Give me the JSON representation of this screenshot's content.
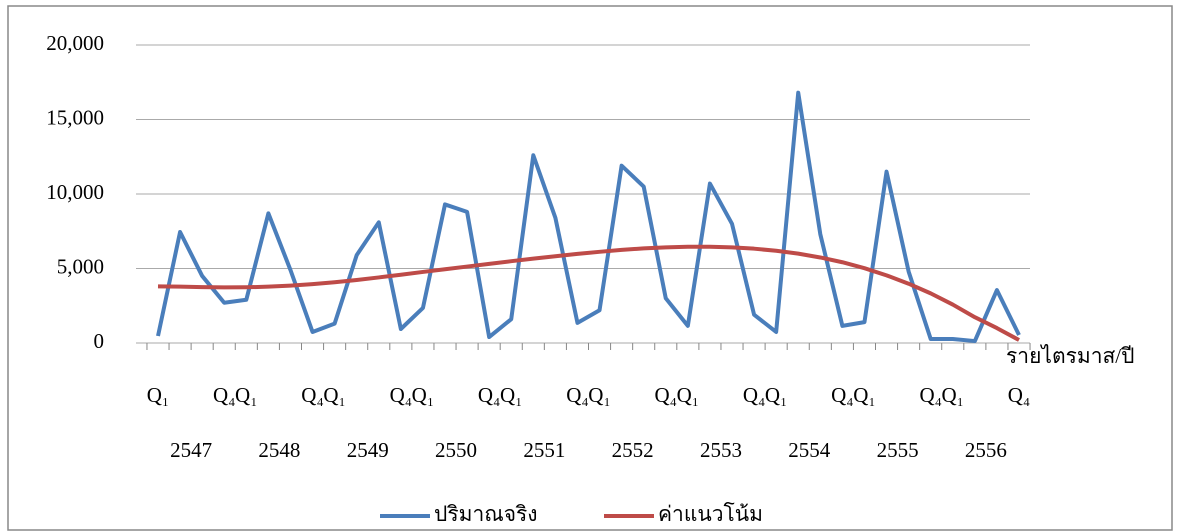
{
  "chart_data": {
    "type": "line",
    "x_label": "รายไตรมาส/ปี",
    "categories": [
      "Q₁",
      null,
      null,
      "Q₄",
      "Q₁",
      null,
      null,
      "Q₄",
      "Q₁",
      null,
      null,
      "Q₄",
      "Q₁",
      null,
      null,
      "Q₄",
      "Q₁",
      null,
      null,
      "Q₄",
      "Q₁",
      null,
      null,
      "Q₄",
      "Q₁",
      null,
      null,
      "Q₄",
      "Q₁",
      null,
      null,
      "Q₄",
      "Q₁",
      null,
      null,
      "Q₄",
      "Q₁",
      null,
      null,
      "Q₄"
    ],
    "category_groups": [
      "2547",
      "2548",
      "2549",
      "2550",
      "2551",
      "2552",
      "2553",
      "2554",
      "2555",
      "2556"
    ],
    "series": [
      {
        "name": "ปริมาณจริง",
        "color": "#4a7ebb",
        "values": [
          470,
          7450,
          4500,
          2700,
          2900,
          8700,
          4900,
          740,
          1300,
          5900,
          8100,
          940,
          2350,
          9300,
          8800,
          400,
          1600,
          12600,
          8400,
          1350,
          2200,
          11900,
          10500,
          3000,
          1150,
          10700,
          8000,
          1900,
          740,
          16800,
          7300,
          1150,
          1400,
          11500,
          4800,
          270,
          270,
          130,
          3550,
          540
        ]
      },
      {
        "name": "ค่าแนวโน้ม",
        "color": "#be4b48",
        "values": [
          3800,
          3780,
          3750,
          3730,
          3740,
          3780,
          3850,
          3950,
          4080,
          4230,
          4400,
          4580,
          4770,
          4950,
          5130,
          5310,
          5490,
          5660,
          5820,
          5980,
          6120,
          6250,
          6350,
          6420,
          6460,
          6460,
          6420,
          6330,
          6190,
          6000,
          5740,
          5420,
          5020,
          4540,
          3980,
          3330,
          2580,
          1730,
          1000,
          200
        ]
      }
    ],
    "ylim": [
      0,
      20000
    ],
    "yticks": [
      0,
      {
        "value": 5000,
        "label": "5,000"
      },
      {
        "value": 10000,
        "label": "10,000"
      },
      {
        "value": 15000,
        "label": "15,000"
      },
      {
        "value": 20000,
        "label": "20,000"
      }
    ],
    "grid": true,
    "legend": "bottom"
  }
}
